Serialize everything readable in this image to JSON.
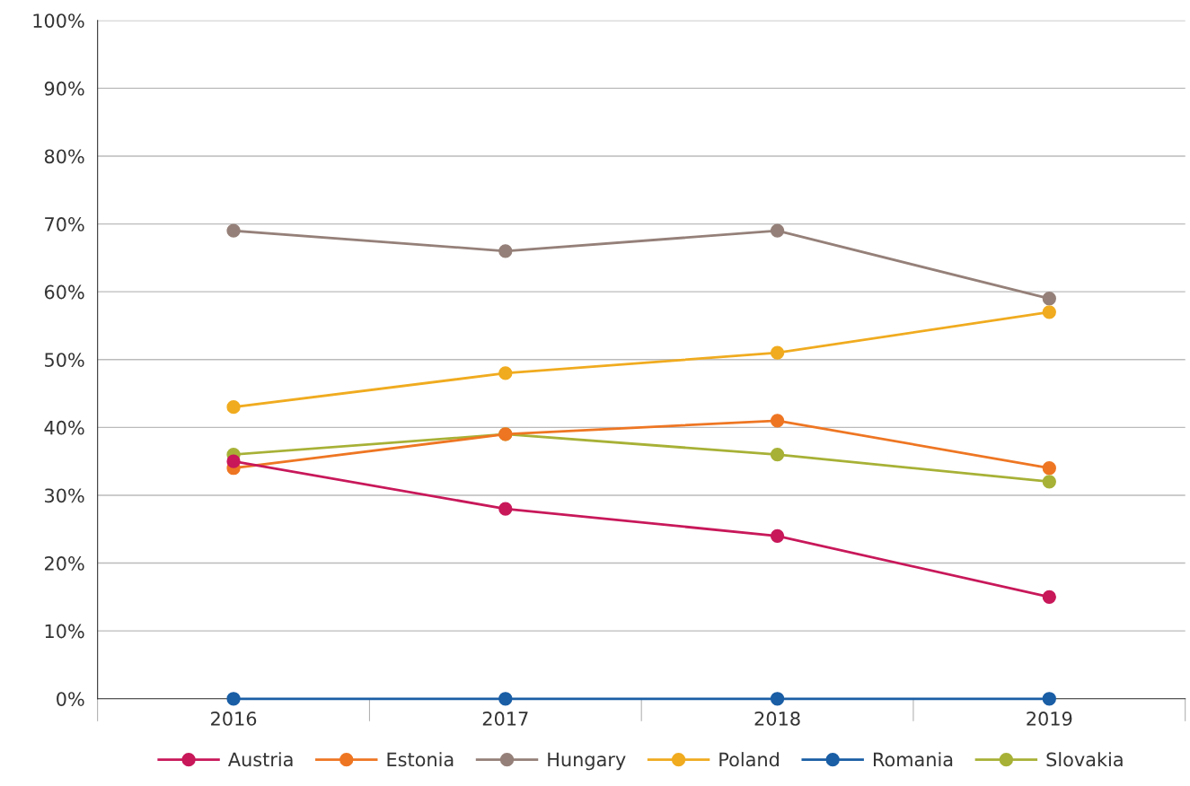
{
  "chart_data": {
    "type": "line",
    "categories": [
      "2016",
      "2017",
      "2018",
      "2019"
    ],
    "series": [
      {
        "name": "Austria",
        "color": "#c8185a",
        "values": [
          35,
          28,
          24,
          15
        ]
      },
      {
        "name": "Estonia",
        "color": "#ee7623",
        "values": [
          34,
          39,
          41,
          34
        ]
      },
      {
        "name": "Hungary",
        "color": "#958079",
        "values": [
          69,
          66,
          69,
          59
        ]
      },
      {
        "name": "Poland",
        "color": "#f0ab1f",
        "values": [
          43,
          48,
          51,
          57
        ]
      },
      {
        "name": "Romania",
        "color": "#1a5ea5",
        "values": [
          0,
          0,
          0,
          0
        ]
      },
      {
        "name": "Slovakia",
        "color": "#a7b136",
        "values": [
          36,
          39,
          36,
          32
        ]
      }
    ],
    "ylim": [
      0,
      100
    ],
    "yticks": [
      {
        "value": 0,
        "label": "0%"
      },
      {
        "value": 10,
        "label": "10%"
      },
      {
        "value": 20,
        "label": "20%"
      },
      {
        "value": 30,
        "label": "30%"
      },
      {
        "value": 40,
        "label": "40%"
      },
      {
        "value": 50,
        "label": "50%"
      },
      {
        "value": 60,
        "label": "60%"
      },
      {
        "value": 70,
        "label": "70%"
      },
      {
        "value": 80,
        "label": "80%"
      },
      {
        "value": 90,
        "label": "90%"
      },
      {
        "value": 100,
        "label": "100%"
      }
    ],
    "grid": "y",
    "legend": "bottom",
    "marker": "circle",
    "line_style": "solid"
  }
}
